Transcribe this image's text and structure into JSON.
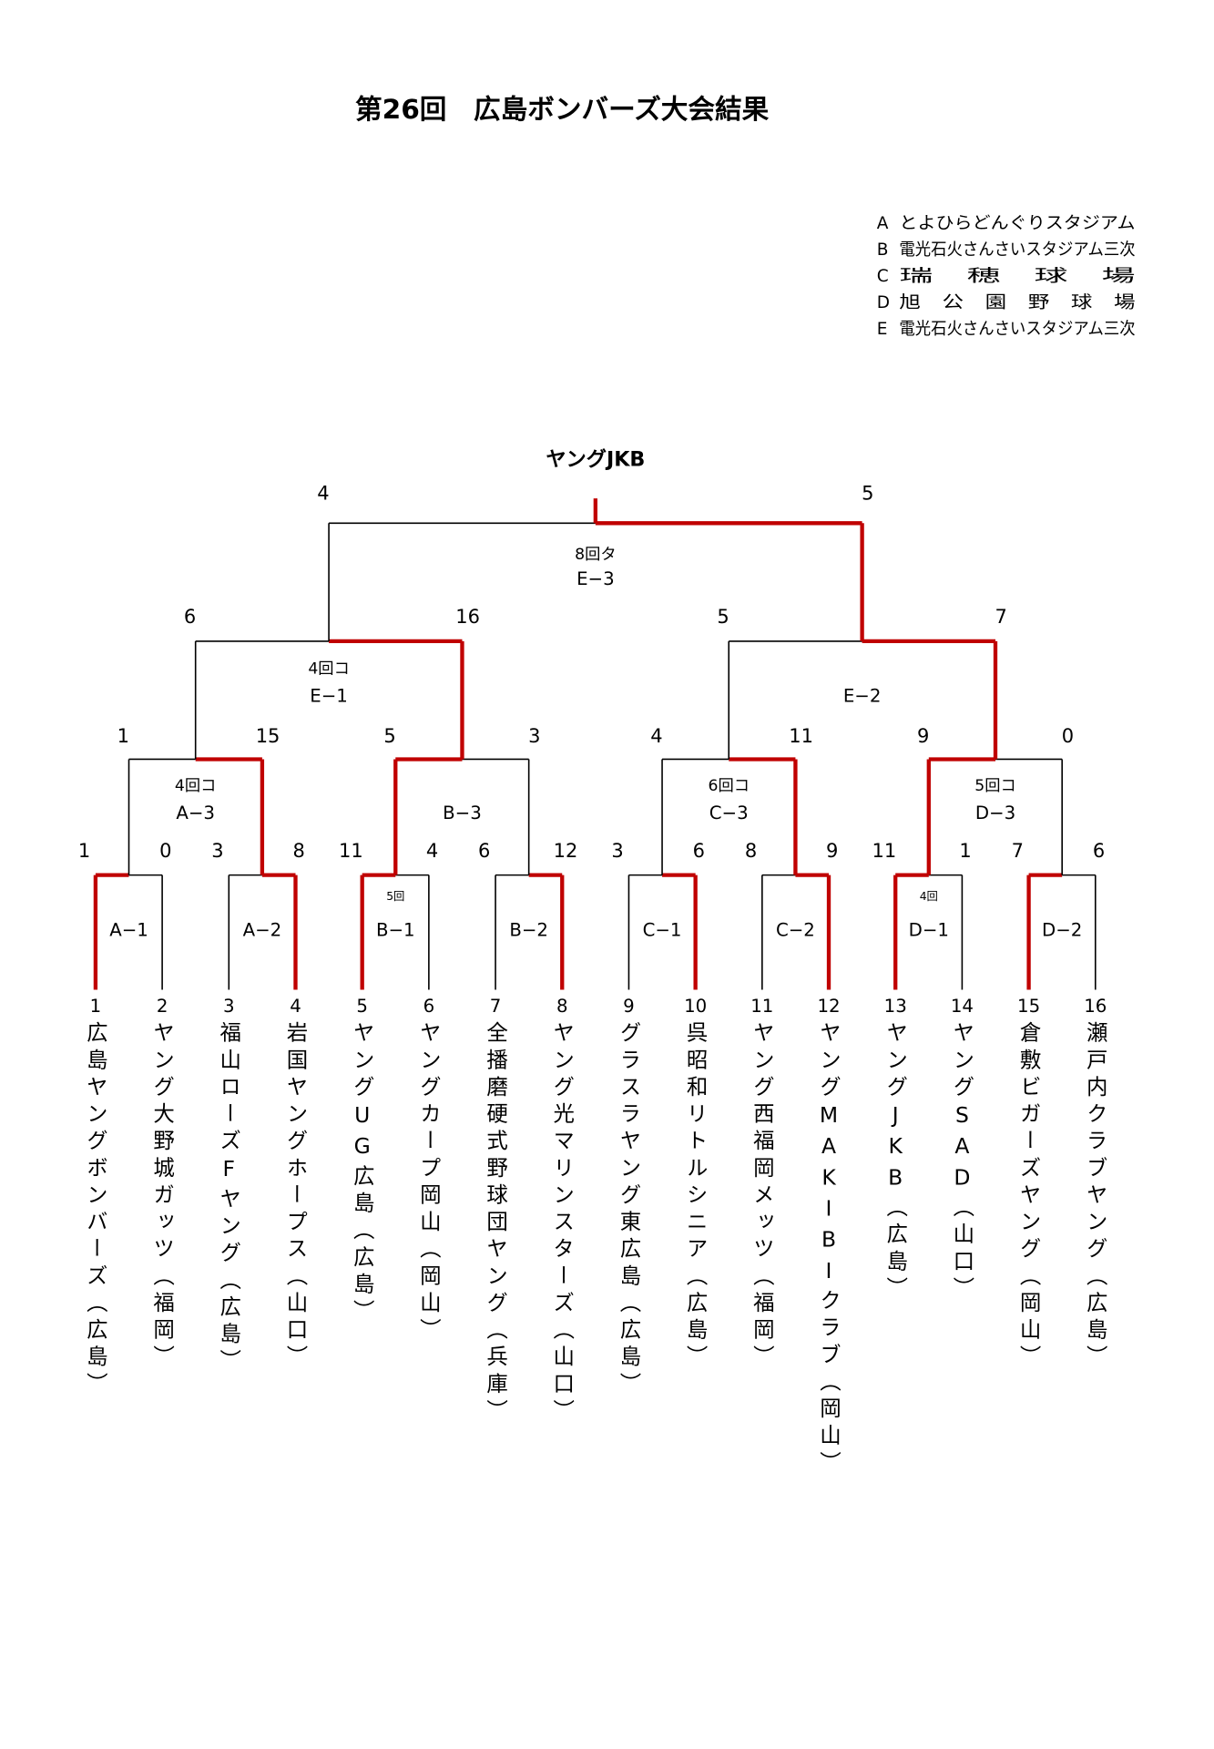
{
  "title": "第26回　広島ボンバーズ大会結果",
  "legend": [
    {
      "key": "A",
      "name": "とよひらどんぐりスタジアム"
    },
    {
      "key": "B",
      "name": "電光石火さんさいスタジアム三次"
    },
    {
      "key": "C",
      "name": "瑞　穂　球　場"
    },
    {
      "key": "D",
      "name": "旭　公　園　野　球　場"
    },
    {
      "key": "E",
      "name": "電光石火さんさいスタジアム三次"
    }
  ],
  "champion": "ヤングJKB",
  "teams": [
    {
      "no": 1,
      "name": "広島ヤングボンバーズ（広島）"
    },
    {
      "no": 2,
      "name": "ヤング大野城ガッツ（福岡）"
    },
    {
      "no": 3,
      "name": "福山ローズFヤング（広島）"
    },
    {
      "no": 4,
      "name": "岩国ヤングホープス（山口）"
    },
    {
      "no": 5,
      "name": "ヤングUG広島（広島）"
    },
    {
      "no": 6,
      "name": "ヤングカープ岡山（岡山）"
    },
    {
      "no": 7,
      "name": "全播磨硬式野球団ヤング（兵庫）"
    },
    {
      "no": 8,
      "name": "ヤング光マリンスターズ（山口）"
    },
    {
      "no": 9,
      "name": "グラスラヤング東広島（広島）"
    },
    {
      "no": 10,
      "name": "呉昭和リトルシニア（広島）"
    },
    {
      "no": 11,
      "name": "ヤング西福岡メッツ（福岡）"
    },
    {
      "no": 12,
      "name": "ヤングMAKIBIクラブ（岡山）"
    },
    {
      "no": 13,
      "name": "ヤングJKB（広島）"
    },
    {
      "no": 14,
      "name": "ヤングSAD（山口）"
    },
    {
      "no": 15,
      "name": "倉敷ビガーズヤング（岡山）"
    },
    {
      "no": 16,
      "name": "瀬戸内クラブヤング（広島）"
    }
  ],
  "matches": [
    {
      "label": "A−1",
      "scores": [
        1,
        0
      ]
    },
    {
      "label": "A−2",
      "scores": [
        3,
        8
      ]
    },
    {
      "label": "B−1",
      "note": "5回",
      "scores": [
        11,
        4
      ]
    },
    {
      "label": "B−2",
      "scores": [
        6,
        12
      ]
    },
    {
      "label": "C−1",
      "scores": [
        3,
        6
      ]
    },
    {
      "label": "C−2",
      "scores": [
        8,
        9
      ]
    },
    {
      "label": "D−1",
      "note": "4回",
      "scores": [
        11,
        1
      ]
    },
    {
      "label": "D−2",
      "scores": [
        7,
        6
      ]
    },
    {
      "label": "A−3",
      "note": "4回コ",
      "scores": [
        1,
        15
      ]
    },
    {
      "label": "B−3",
      "scores": [
        5,
        3
      ]
    },
    {
      "label": "C−3",
      "note": "6回コ",
      "scores": [
        4,
        11
      ]
    },
    {
      "label": "D−3",
      "note": "5回コ",
      "scores": [
        9,
        0
      ]
    },
    {
      "label": "E−1",
      "note": "4回コ",
      "scores": [
        6,
        16
      ]
    },
    {
      "label": "E−2",
      "scores": [
        5,
        7
      ]
    },
    {
      "label": "E−3",
      "note": "8回タ",
      "scores": [
        4,
        5
      ]
    }
  ]
}
